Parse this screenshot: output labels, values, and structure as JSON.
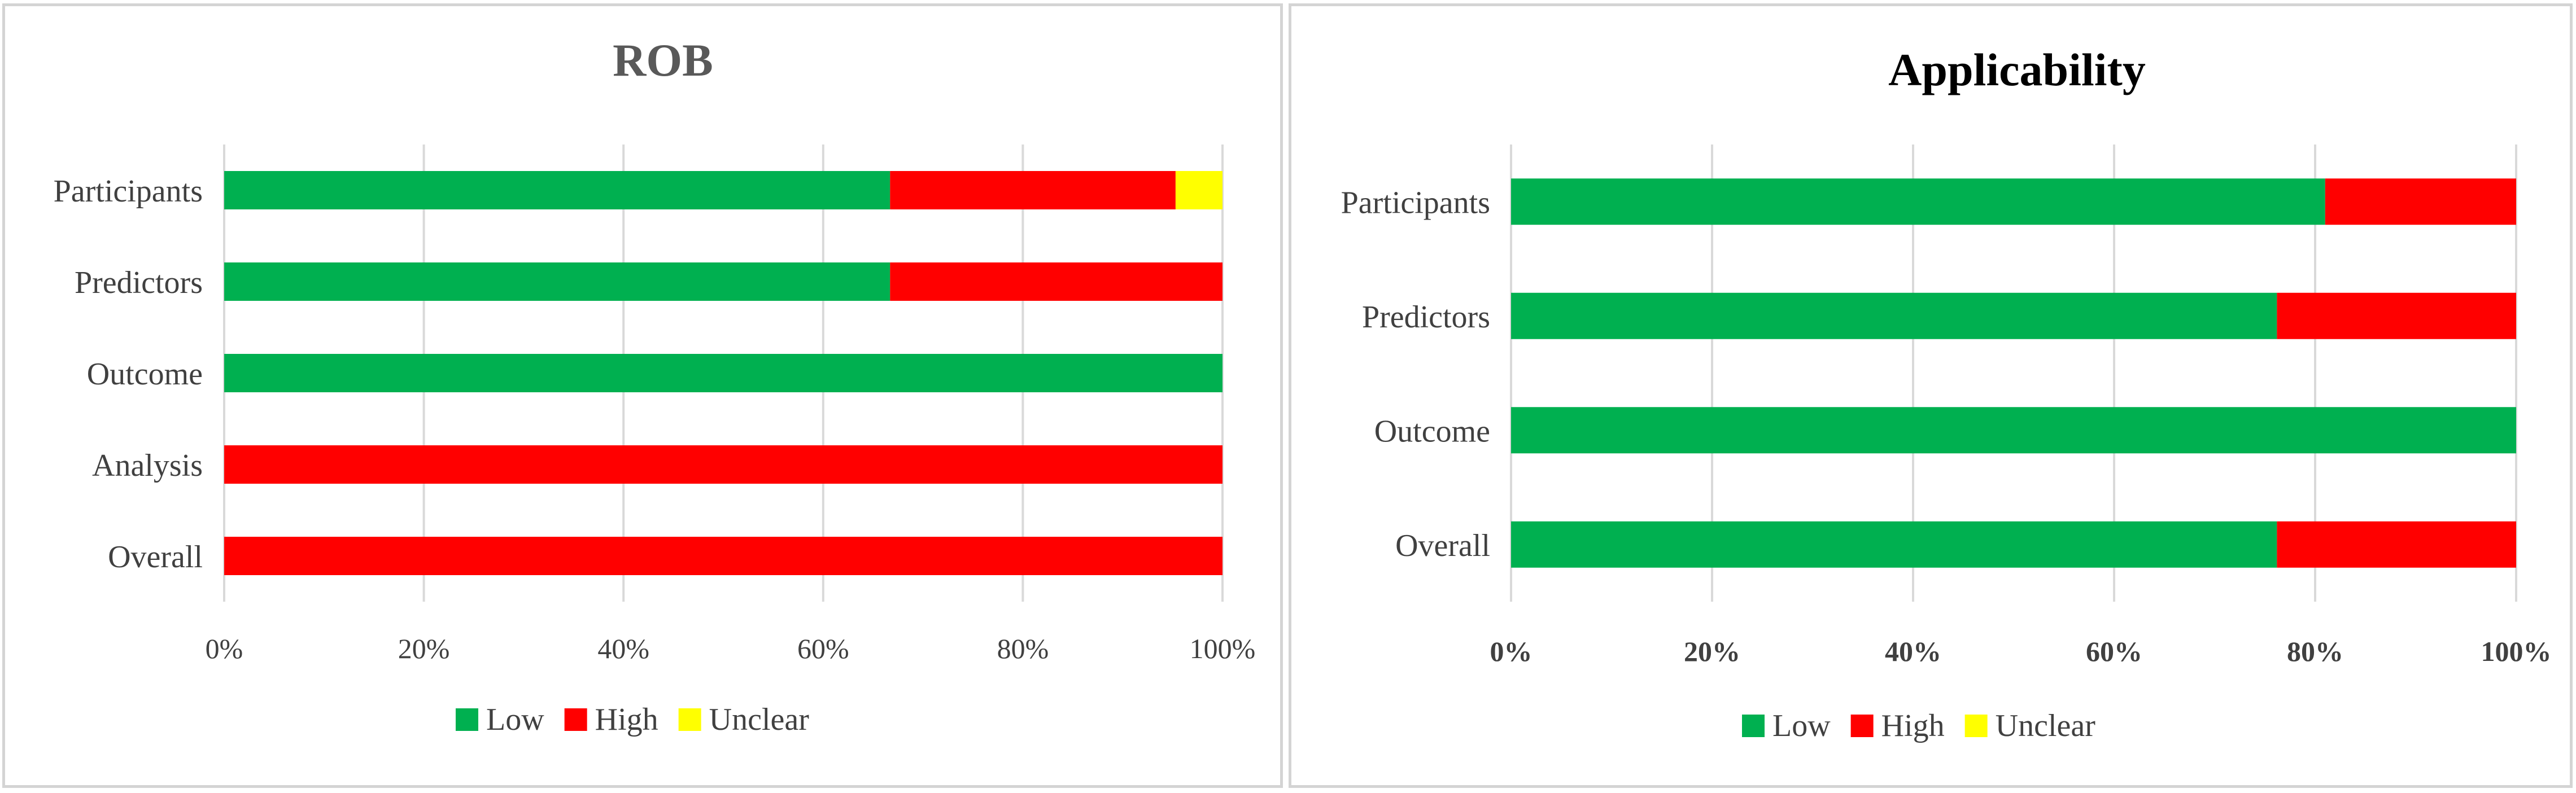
{
  "colors": {
    "low": "#00b050",
    "high": "#ff0000",
    "unclear": "#ffff00",
    "grid": "#d9d9d9",
    "axis_text": "#404040"
  },
  "chart_data": [
    {
      "type": "bar",
      "orientation": "horizontal",
      "stacked": "percent",
      "title": "ROB",
      "title_color": "#595959",
      "categories": [
        "Participants",
        "Predictors",
        "Outcome",
        "Analysis",
        "Overall"
      ],
      "series": [
        {
          "name": "Low",
          "color": "#00b050",
          "values": [
            66.7,
            66.7,
            100,
            0,
            0
          ]
        },
        {
          "name": "High",
          "color": "#ff0000",
          "values": [
            28.6,
            33.3,
            0,
            100,
            100
          ]
        },
        {
          "name": "Unclear",
          "color": "#ffff00",
          "values": [
            4.7,
            0,
            0,
            0,
            0
          ]
        }
      ],
      "x_ticks": [
        "0%",
        "20%",
        "40%",
        "60%",
        "80%",
        "100%"
      ],
      "xlim": [
        0,
        100
      ],
      "tick_bold": false,
      "grid": true,
      "legend": "bottom"
    },
    {
      "type": "bar",
      "orientation": "horizontal",
      "stacked": "percent",
      "title": "Applicability",
      "title_color": "#000000",
      "categories": [
        "Participants",
        "Predictors",
        "Outcome",
        "Overall"
      ],
      "series": [
        {
          "name": "Low",
          "color": "#00b050",
          "values": [
            81,
            76.2,
            100,
            76.2
          ]
        },
        {
          "name": "High",
          "color": "#ff0000",
          "values": [
            19,
            23.8,
            0,
            23.8
          ]
        },
        {
          "name": "Unclear",
          "color": "#ffff00",
          "values": [
            0,
            0,
            0,
            0
          ]
        }
      ],
      "x_ticks": [
        "0%",
        "20%",
        "40%",
        "60%",
        "80%",
        "100%"
      ],
      "xlim": [
        0,
        100
      ],
      "tick_bold": true,
      "grid": true,
      "legend": "bottom"
    }
  ]
}
